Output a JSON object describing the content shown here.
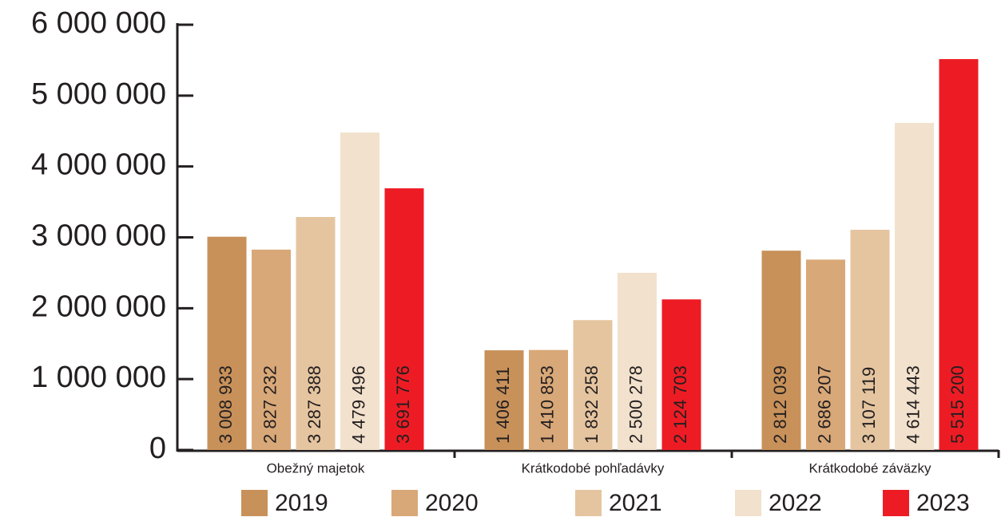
{
  "chart_data": {
    "type": "bar",
    "categories": [
      "Obežný majetok",
      "Krátkodobé pohľadávky",
      "Krátkodobé záväzky"
    ],
    "series": [
      {
        "name": "2019",
        "color": "#c8915a",
        "values": [
          3008933,
          1406411,
          2812039
        ],
        "value_labels": [
          "3 008 933",
          "1 406 411",
          "2 812 039"
        ]
      },
      {
        "name": "2020",
        "color": "#d9a878",
        "values": [
          2827232,
          1410853,
          2686207
        ],
        "value_labels": [
          "2 827 232",
          "1 410 853",
          "2 686 207"
        ]
      },
      {
        "name": "2021",
        "color": "#e5c5a0",
        "values": [
          3287388,
          1832258,
          3107119
        ],
        "value_labels": [
          "3 287 388",
          "1 832 258",
          "3 107 119"
        ]
      },
      {
        "name": "2022",
        "color": "#f2e1cc",
        "values": [
          4479496,
          2500278,
          4614443
        ],
        "value_labels": [
          "4 479 496",
          "2 500 278",
          "4 614 443"
        ]
      },
      {
        "name": "2023",
        "color": "#ed1c24",
        "values": [
          3691776,
          2124703,
          5515200
        ],
        "value_labels": [
          "3 691 776",
          "2 124 703",
          "5 515 200"
        ]
      }
    ],
    "ylim": [
      0,
      6000000
    ],
    "yticks": [
      0,
      {
        "value": 1000000,
        "label": "1 000 000"
      },
      {
        "value": 2000000,
        "label": "2 000 000"
      },
      {
        "value": 3000000,
        "label": "3 000 000"
      },
      {
        "value": 4000000,
        "label": "4 000 000"
      },
      {
        "value": 5000000,
        "label": "5 000 000"
      },
      {
        "value": 6000000,
        "label": "6 000 000"
      }
    ],
    "legend": "bottom"
  }
}
